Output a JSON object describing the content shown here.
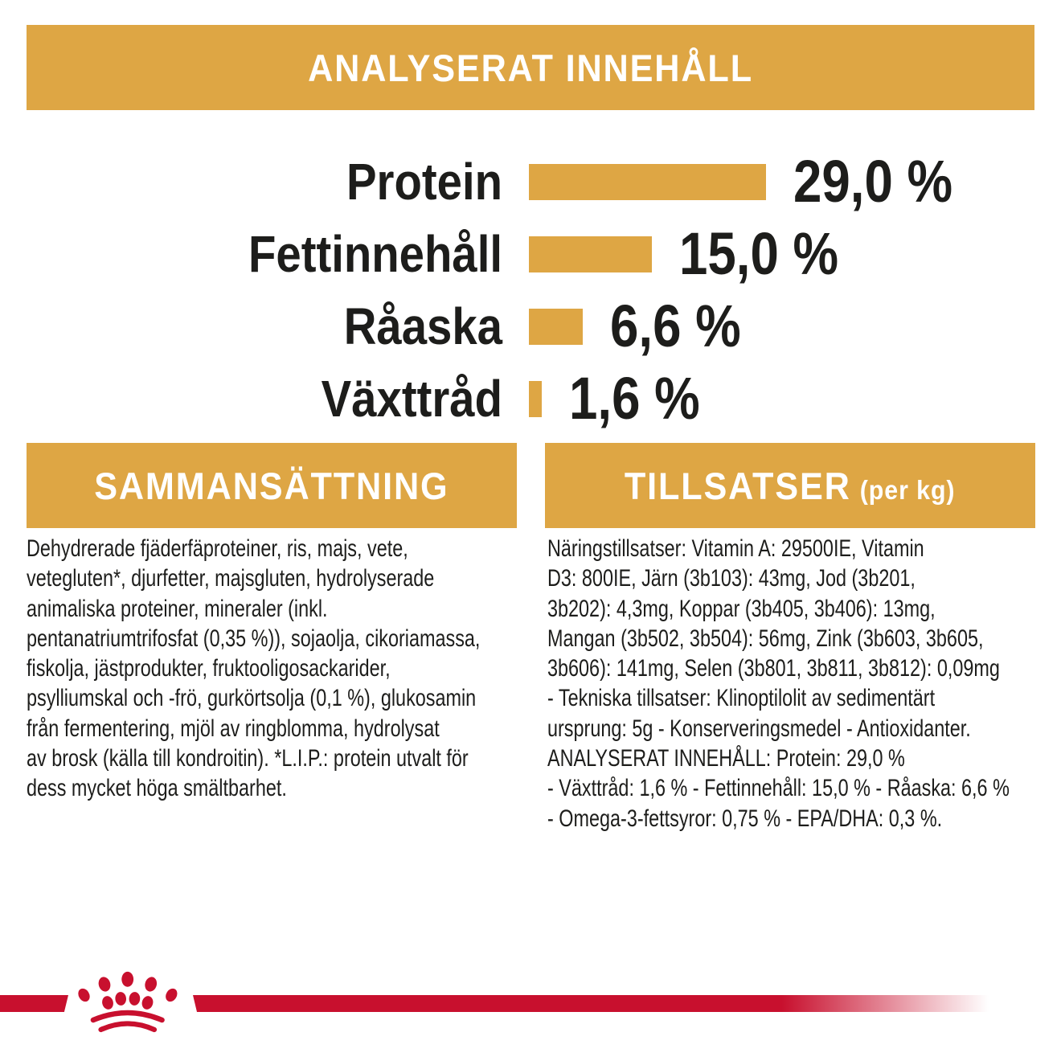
{
  "colors": {
    "gold": "#DEA644",
    "red": "#C8102E",
    "ink": "#1d1d1b",
    "background": "#ffffff"
  },
  "header": {
    "title": "ANALYSERAT INNEHÅLL"
  },
  "chart_data": {
    "type": "bar",
    "orientation": "horizontal",
    "title": "ANALYSERAT INNEHÅLL",
    "categories": [
      "Protein",
      "Fettinnehåll",
      "Råaska",
      "Växttråd"
    ],
    "values": [
      29.0,
      15.0,
      6.6,
      1.6
    ],
    "value_labels": [
      "29,0 %",
      "15,0 %",
      "6,6 %",
      "1,6 %"
    ],
    "unit": "%",
    "xlim": [
      0,
      30
    ],
    "bar_color": "#DEA644",
    "legend": "none",
    "grid": false
  },
  "sections": {
    "composition": {
      "title": "SAMMANSÄTTNING",
      "body": "Dehydrerade fjäderfäproteiner, ris, majs, vete,\nvetegluten*, djurfetter, majsgluten, hydrolyserade\nanimaliska proteiner, mineraler (inkl.\npentanatriumtrifosfat (0,35 %)), sojaolja, cikoriamassa,\nfiskolja, jästprodukter, fruktooligosackarider,\npsylliumskal och -frö, gurkörtsolja (0,1 %), glukosamin\nfrån fermentering, mjöl av ringblomma, hydrolysat\nav brosk (källa till kondroitin). *L.I.P.: protein utvalt för\ndess mycket höga smältbarhet."
    },
    "additives": {
      "title": "TILLSATSER",
      "title_suffix": "(per kg)",
      "body": "Näringstillsatser: Vitamin A: 29500IE, Vitamin\nD3: 800IE, Järn (3b103): 43mg, Jod (3b201,\n3b202): 4,3mg, Koppar (3b405, 3b406): 13mg,\nMangan (3b502, 3b504): 56mg, Zink (3b603, 3b605,\n3b606): 141mg, Selen (3b801, 3b811, 3b812): 0,09mg\n- Tekniska tillsatser: Klinoptilolit av sedimentärt\nursprung: 5g - Konserveringsmedel - Antioxidanter.\nANALYSERAT INNEHÅLL: Protein: 29,0 %\n- Växttråd: 1,6 % - Fettinnehåll: 15,0 % - Råaska: 6,6 %\n- Omega-3-fettsyror: 0,75 % - EPA/DHA: 0,3 %."
    }
  },
  "footer": {
    "logo": "royal-canin-crown-icon"
  }
}
